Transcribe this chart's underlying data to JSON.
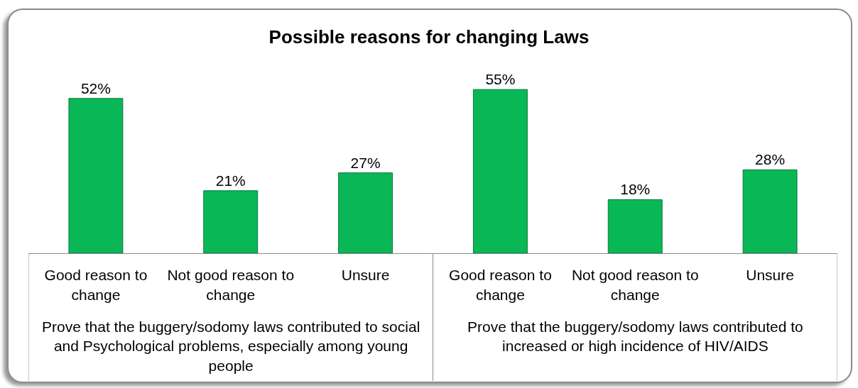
{
  "chart_data": {
    "type": "bar",
    "title": "Possible reasons for changing Laws",
    "categories": [
      "Good reason to change",
      "Not good reason to change",
      "Unsure",
      "Good reason to change",
      "Not good reason to change",
      "Unsure"
    ],
    "values": [
      52,
      21,
      27,
      55,
      18,
      28
    ],
    "value_labels": [
      "52%",
      "21%",
      "27%",
      "55%",
      "18%",
      "28%"
    ],
    "color": "#0ab757",
    "tick_labels": "x",
    "annotations": [
      "Prove that the buggery/sodomy laws contributed to social and Psychological problems, especially among young people",
      "Prove that the buggery/sodomy laws contributed to increased or high incidence of HIV/AIDS"
    ]
  }
}
